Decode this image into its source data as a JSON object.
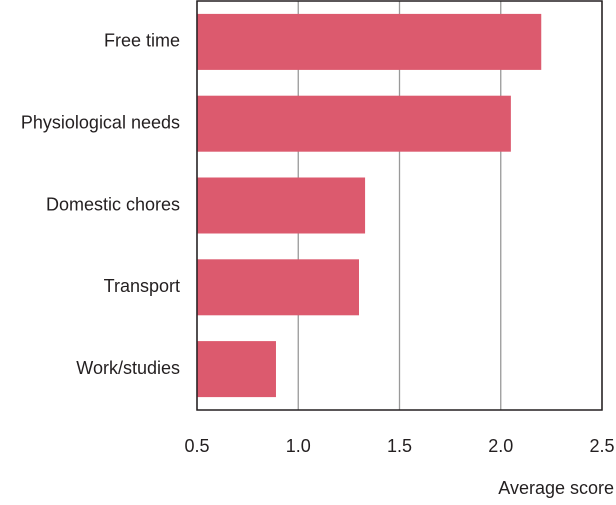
{
  "chart_data": {
    "type": "bar",
    "orientation": "horizontal",
    "x_label": "Average score",
    "categories": [
      "Free time",
      "Physiological needs",
      "Domestic chores",
      "Transport",
      "Work/studies"
    ],
    "values": [
      2.2,
      2.05,
      1.33,
      1.3,
      0.89
    ],
    "color": "#dc5a6e",
    "xlim": [
      0.5,
      2.5
    ],
    "xticks": [
      0.5,
      {
        "value": 1,
        "label": "1.0"
      },
      1.5,
      {
        "value": 2,
        "label": "2.0"
      },
      2.5
    ],
    "grid": true
  }
}
